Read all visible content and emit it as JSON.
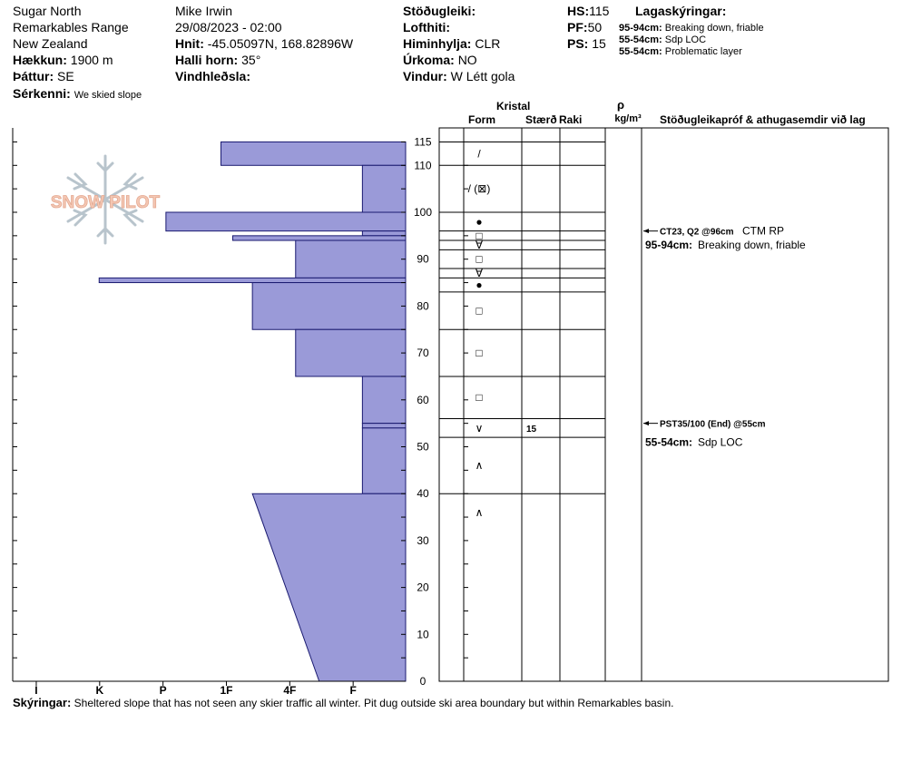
{
  "header": {
    "location": "Sugar North",
    "range": "Remarkables Range",
    "country": "New Zealand",
    "elevation_label": "Hækkun:",
    "elevation": "1900 m",
    "aspect_label": "Þáttur:",
    "aspect": "SE",
    "feature_label": "Sérkenni:",
    "feature": "We skied slope",
    "observer": "Mike Irwin",
    "datetime": "29/08/2023 - 02:00",
    "coords_label": "Hnit:",
    "coords": "-45.05097N, 168.82896W",
    "slope_label": "Halli horn:",
    "slope": "35°",
    "wind_loading_label": "Vindhleðsla:",
    "wind_loading": "",
    "stability_label": "Stöðugleiki:",
    "stability": "",
    "air_temp_label": "Lofthiti:",
    "air_temp": "",
    "sky_label": "Himinhylja:",
    "sky": "CLR",
    "precip_label": "Úrkoma:",
    "precip": "NO",
    "wind_label": "Vindur:",
    "wind": "W Létt gola",
    "hs_label": "HS:",
    "hs": "115",
    "pf_label": "PF:",
    "pf": "50",
    "ps_label": "PS:",
    "ps": "15",
    "legend_title": "Lagaskýringar:",
    "legend": [
      {
        "range": "95-94cm:",
        "text": "Breaking down, friable"
      },
      {
        "range": "55-54cm:",
        "text": "Sdp LOC"
      },
      {
        "range": "55-54cm:",
        "text": "Problematic layer"
      }
    ]
  },
  "columns": {
    "crystal": "Kristal",
    "form": "Form",
    "size": "Stærð",
    "moisture": "Raki",
    "density_symbol": "ρ",
    "density_unit": "kg/m³",
    "tests": "Stöðugleikapróf & athugasemdir við lag"
  },
  "footer": {
    "label": "Skýringar:",
    "text": "Sheltered slope that has not seen any skier traffic all winter. Pit dug outside ski area boundary but within Remarkables basin."
  },
  "logo_text": "SNOW PILOT",
  "colors": {
    "hardness_fill": "#9a9ad8",
    "hardness_stroke": "#1a1a70"
  },
  "chart_data": {
    "type": "bar",
    "hardness_categories": [
      "I",
      "K",
      "P",
      "1F",
      "4F",
      "F"
    ],
    "depth_ticks": [
      0,
      10,
      20,
      30,
      40,
      50,
      60,
      70,
      80,
      90,
      100,
      110,
      115
    ],
    "ylim": [
      0,
      115
    ],
    "hardness_layers": [
      {
        "top": 115,
        "bottom": 110,
        "hardness": 0.47
      },
      {
        "top": 110,
        "bottom": 100,
        "hardness": 0.11
      },
      {
        "top": 100,
        "bottom": 96,
        "hardness": 0.61
      },
      {
        "top": 96,
        "bottom": 95,
        "hardness": 0.11
      },
      {
        "top": 95,
        "bottom": 94,
        "hardness": 0.44
      },
      {
        "top": 94,
        "bottom": 86,
        "hardness": 0.28
      },
      {
        "top": 86,
        "bottom": 85,
        "hardness": 0.78
      },
      {
        "top": 85,
        "bottom": 75,
        "hardness": 0.39
      },
      {
        "top": 75,
        "bottom": 65,
        "hardness": 0.28
      },
      {
        "top": 65,
        "bottom": 55,
        "hardness": 0.11
      },
      {
        "top": 55,
        "bottom": 54,
        "hardness": 0.11
      },
      {
        "top": 54,
        "bottom": 40,
        "hardness": 0.11
      },
      {
        "top": 40,
        "bottom": 0,
        "hardness_top": 0.39,
        "hardness_bottom": 0.22
      }
    ],
    "layer_boundaries": [
      115,
      110,
      100,
      96,
      94,
      92,
      88,
      86,
      83,
      75,
      65,
      56,
      52,
      40
    ],
    "layer_rows": [
      {
        "top": 115,
        "bottom": 110,
        "grain": "/"
      },
      {
        "top": 110,
        "bottom": 100,
        "grain": "/ (⊠)"
      },
      {
        "top": 100,
        "bottom": 96,
        "grain": "●"
      },
      {
        "top": 96,
        "bottom": 94,
        "grain": "□"
      },
      {
        "top": 94,
        "bottom": 92,
        "grain": "∀"
      },
      {
        "top": 92,
        "bottom": 88,
        "grain": "□"
      },
      {
        "top": 88,
        "bottom": 86,
        "grain": "∀"
      },
      {
        "top": 86,
        "bottom": 83,
        "grain": "●"
      },
      {
        "top": 83,
        "bottom": 75,
        "grain": "□"
      },
      {
        "top": 75,
        "bottom": 65,
        "grain": "□"
      },
      {
        "top": 65,
        "bottom": 56,
        "grain": "□"
      },
      {
        "top": 56,
        "bottom": 52,
        "grain": "∨",
        "size": "15"
      },
      {
        "top": 52,
        "bottom": 40,
        "grain": "∧"
      },
      {
        "top": 40,
        "bottom": 0,
        "grain": "∧"
      }
    ],
    "tests": [
      {
        "depth": 96,
        "code": "CT23, Q2 @96cm",
        "result": "CTM RP"
      },
      {
        "depth": 55,
        "code": "PST35/100 (End) @55cm",
        "result": ""
      }
    ],
    "comments": [
      {
        "depth": 93,
        "range": "95-94cm:",
        "text": "Breaking down, friable"
      },
      {
        "depth": 51,
        "range": "55-54cm:",
        "text": "Sdp LOC"
      }
    ]
  }
}
